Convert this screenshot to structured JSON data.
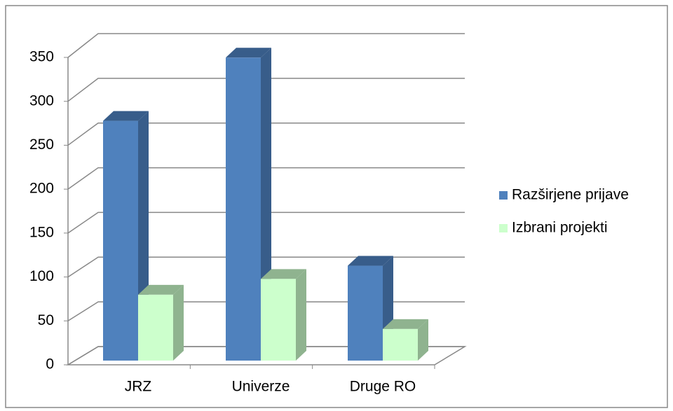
{
  "chart_data": {
    "type": "bar3d",
    "categories": [
      "JRZ",
      "Univerze",
      "Druge RO"
    ],
    "series": [
      {
        "name": "Razširjene prijave",
        "color": "#4f81bd",
        "side": "#385d8a",
        "values": [
          273,
          345,
          108
        ]
      },
      {
        "name": "Izbrani projekti",
        "color": "#ccffcc",
        "side": "#8fb38f",
        "values": [
          75,
          93,
          36
        ]
      }
    ],
    "ylim": [
      0,
      350
    ],
    "yticks": [
      0,
      50,
      100,
      150,
      200,
      250,
      300,
      350
    ],
    "grid": true,
    "legend": "right"
  }
}
